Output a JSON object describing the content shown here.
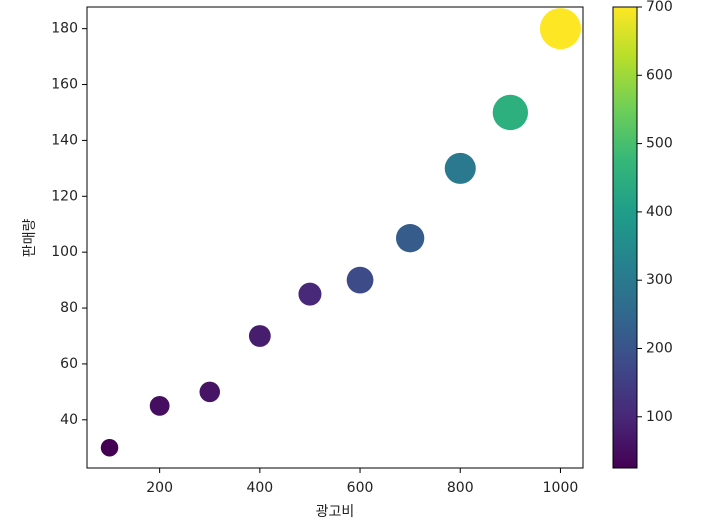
{
  "chart_data": {
    "type": "scatter",
    "x_label": "광고비",
    "y_label": "판매량",
    "x": [
      100,
      200,
      300,
      400,
      500,
      600,
      700,
      800,
      900,
      1000
    ],
    "values": [
      30,
      45,
      50,
      70,
      85,
      90,
      105,
      130,
      150,
      180
    ],
    "color_values": [
      25,
      50,
      60,
      80,
      100,
      180,
      220,
      300,
      450,
      700
    ],
    "colormap": "viridis",
    "xlim": [
      55,
      1045
    ],
    "xticks": [
      200,
      400,
      600,
      800,
      1000
    ],
    "ylim": [
      22.75,
      187.75
    ],
    "yticks": [
      40,
      60,
      80,
      100,
      120,
      140,
      160,
      180
    ],
    "clim": [
      25,
      700
    ],
    "cticks": [
      100,
      200,
      300,
      400,
      500,
      600,
      700
    ]
  }
}
